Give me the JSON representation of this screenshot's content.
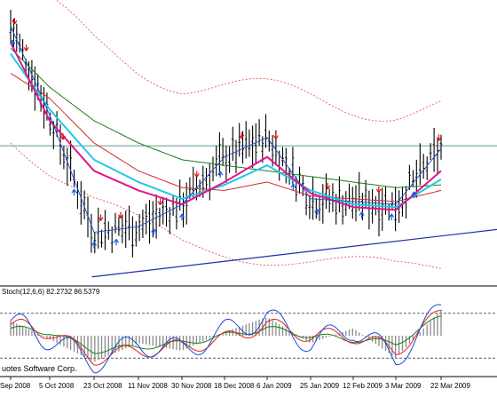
{
  "chart_data": [
    {
      "type": "line",
      "panel": "price",
      "colors": {
        "price": "#000000",
        "ma_fast": "#1a4bd6",
        "ma_magenta": "#e0158a",
        "ma_cyan": "#21c7e8",
        "ma_red": "#d42a2a",
        "ma_green": "#1b7d1b",
        "envelope": "#e8473a",
        "trendline": "#1f2fa8",
        "hline": "#2a7a6c",
        "arrow_down": "#e01010",
        "arrow_up": "#1060e8"
      },
      "x": [
        "Sep 2008",
        "5 Oct 2008",
        "23 Oct 2008",
        "11 Nov 2008",
        "30 Nov 2008",
        "18 Dec 2008",
        "6 Jan 2009",
        "25 Jan 2009",
        "12 Feb 2009",
        "3 Mar 2009",
        "22 Mar 2009"
      ],
      "series": [
        {
          "values": [
            0.92,
            0.6,
            0.18,
            0.2,
            0.28,
            0.45,
            0.52,
            0.3,
            0.29,
            0.28,
            0.48
          ]
        },
        {
          "values": [
            0.86,
            0.58,
            0.4,
            0.33,
            0.28,
            0.36,
            0.45,
            0.32,
            0.27,
            0.26,
            0.4
          ]
        },
        {
          "values": [
            0.82,
            0.62,
            0.44,
            0.36,
            0.3,
            0.35,
            0.42,
            0.33,
            0.28,
            0.27,
            0.37
          ]
        },
        {
          "values": [
            0.75,
            0.66,
            0.5,
            0.4,
            0.34,
            0.33,
            0.36,
            0.31,
            0.3,
            0.29,
            0.33
          ]
        },
        {
          "values": [
            0.84,
            0.7,
            0.58,
            0.5,
            0.44,
            0.42,
            0.4,
            0.38,
            0.36,
            0.34,
            0.35
          ]
        }
      ],
      "horizontal_level": 0.49,
      "arrows_down_count": 12,
      "arrows_up_count": 12,
      "grid": false
    },
    {
      "type": "line",
      "panel": "stochastic",
      "indicator_label": "Stoch(12,6,6) 82.2732 86.5379",
      "ylim": [
        0,
        100
      ],
      "levels": [
        80,
        20
      ],
      "colors": {
        "k": "#1a4bd6",
        "d": "#e02020",
        "slow": "#1b7d1b",
        "histogram": "#8a8a8a",
        "level": "#000000"
      },
      "series": [
        {
          "values": [
            70,
            45,
            15,
            40,
            30,
            55,
            75,
            40,
            60,
            20,
            85
          ]
        },
        {
          "values": [
            65,
            55,
            20,
            30,
            35,
            45,
            65,
            50,
            50,
            30,
            80
          ]
        },
        {
          "values": [
            60,
            55,
            30,
            35,
            40,
            50,
            60,
            50,
            45,
            40,
            75
          ]
        }
      ],
      "watermark": "uotes Software Corp."
    }
  ]
}
